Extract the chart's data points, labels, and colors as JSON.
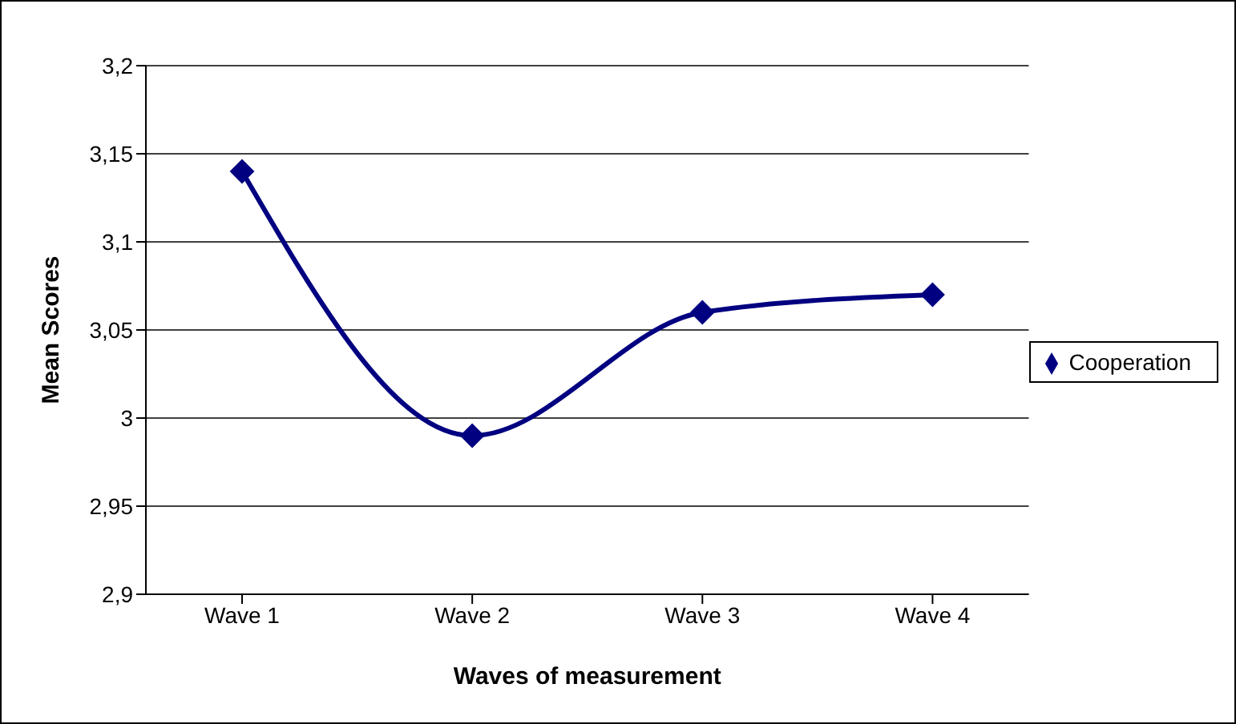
{
  "chart_data": {
    "type": "line",
    "categories": [
      "Wave 1",
      "Wave 2",
      "Wave 3",
      "Wave 4"
    ],
    "series": [
      {
        "name": "Cooperation",
        "color": "#000080",
        "values": [
          3.14,
          2.99,
          3.06,
          3.07
        ]
      }
    ],
    "xlabel": "Waves of measurement",
    "ylabel": "Mean Scores",
    "ylim": [
      2.9,
      3.2
    ],
    "yticks": [
      {
        "value": 2.9,
        "label": "2,9"
      },
      {
        "value": 2.95,
        "label": "2,95"
      },
      {
        "value": 3,
        "label": "3"
      },
      {
        "value": 3.05,
        "label": "3,05"
      },
      {
        "value": 3.1,
        "label": "3,1"
      },
      {
        "value": 3.15,
        "label": "3,15"
      },
      {
        "value": 3.2,
        "label": "3,2"
      }
    ],
    "grid": "y",
    "legend": "right",
    "marker": "diamond",
    "line_style": "solid"
  }
}
